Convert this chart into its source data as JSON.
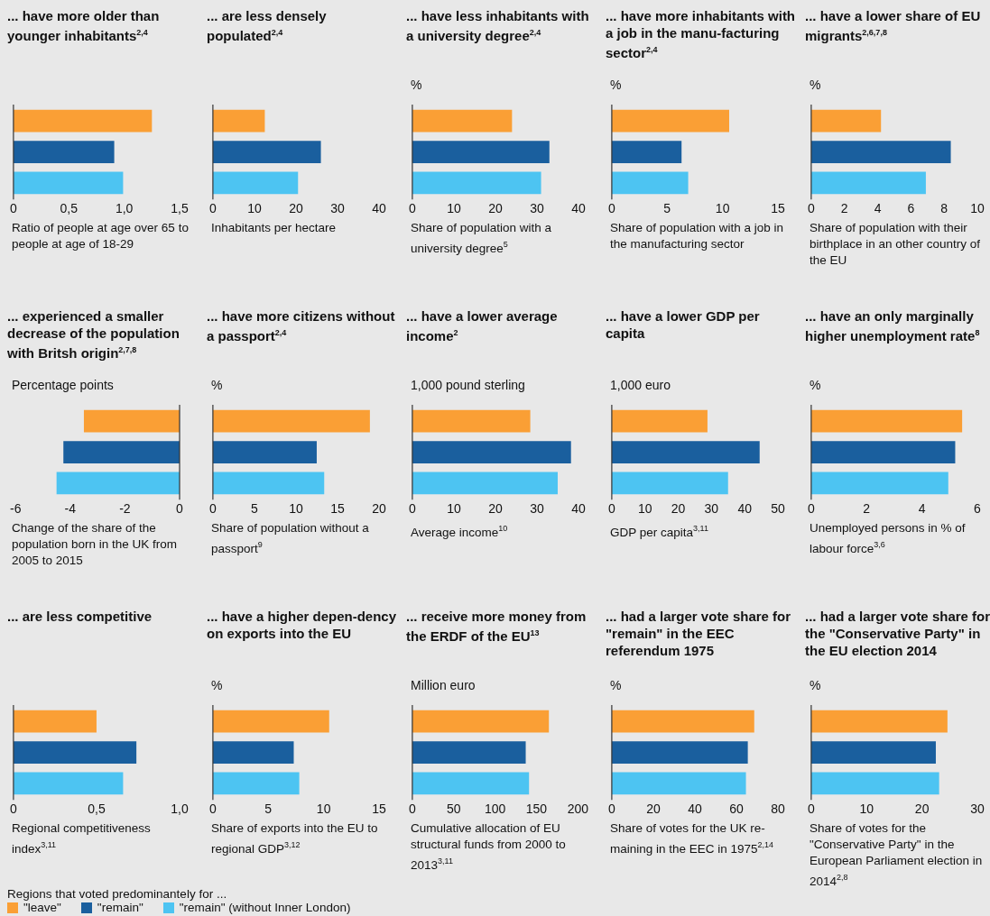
{
  "chart_data": [
    {
      "type": "bar",
      "orientation": "horizontal",
      "title": "... have more older than younger inhabitants$^{2,4}$",
      "xlabel": "Ratio of people at age over 65 to people at age of 18-29",
      "categories": [
        null
      ],
      "legend": "bottom",
      "legend_title": "Regions that voted predominantely for ...",
      "xlim": [
        0,
        1.5
      ],
      "xticks": [
        0,
        {
          "value": 0.5,
          "label": "0,5"
        },
        {
          "value": 1,
          "label": "1,0"
        },
        {
          "value": 1.5,
          "label": "1,5"
        }
      ],
      "series": [
        {
          "name": "\"leave\"",
          "color": "#fa9f35",
          "values": [
            1.25
          ]
        },
        {
          "name": "\"remain\"",
          "color": "#1a5f9e",
          "values": [
            0.91
          ]
        },
        {
          "name": "\"remain\" (without Inner London)",
          "color": "#4dc4f2",
          "values": [
            0.99
          ]
        }
      ]
    },
    {
      "type": "bar",
      "orientation": "horizontal",
      "title": "... are less densely populated$^{2,4}$",
      "xlabel": "Inhabitants per hectare",
      "categories": [
        null
      ],
      "xlim": [
        0,
        40
      ],
      "xticks": [
        0,
        10,
        20,
        30,
        40
      ],
      "series": [
        {
          "color": "#fa9f35",
          "values": [
            12.5
          ]
        },
        {
          "color": "#1a5f9e",
          "values": [
            26
          ]
        },
        {
          "color": "#4dc4f2",
          "values": [
            20.5
          ]
        }
      ]
    },
    {
      "type": "bar",
      "orientation": "horizontal",
      "title": "... have less inhabitants with a university degree$^{2,4}$",
      "subtitle": "%",
      "xlabel": "Share of population with a university degree$^{5}$",
      "categories": [
        null
      ],
      "xlim": [
        0,
        40
      ],
      "xticks": [
        0,
        10,
        20,
        30,
        40
      ],
      "series": [
        {
          "color": "#fa9f35",
          "values": [
            24
          ]
        },
        {
          "color": "#1a5f9e",
          "values": [
            33
          ]
        },
        {
          "color": "#4dc4f2",
          "values": [
            31
          ]
        }
      ]
    },
    {
      "type": "bar",
      "orientation": "horizontal",
      "title": "... have more inhabitants with a job in the manu-facturing sector$^{2,4}$",
      "subtitle": "%",
      "xlabel": "Share of population with a job in the manufacturing sector",
      "categories": [
        null
      ],
      "xlim": [
        0,
        15
      ],
      "xticks": [
        0,
        5,
        10,
        15
      ],
      "series": [
        {
          "color": "#fa9f35",
          "values": [
            10.6
          ]
        },
        {
          "color": "#1a5f9e",
          "values": [
            6.3
          ]
        },
        {
          "color": "#4dc4f2",
          "values": [
            6.9
          ]
        }
      ]
    },
    {
      "type": "bar",
      "orientation": "horizontal",
      "title": "... have a lower share of EU migrants$^{2,6,7,8}$",
      "subtitle": "%",
      "xlabel": "Share of population with their birthplace in an other country of the EU",
      "categories": [
        null
      ],
      "xlim": [
        0,
        10
      ],
      "xticks": [
        0,
        2,
        4,
        6,
        8,
        10
      ],
      "series": [
        {
          "color": "#fa9f35",
          "values": [
            4.2
          ]
        },
        {
          "color": "#1a5f9e",
          "values": [
            8.4
          ]
        },
        {
          "color": "#4dc4f2",
          "values": [
            6.9
          ]
        }
      ]
    },
    {
      "type": "bar",
      "orientation": "horizontal",
      "title": "... experienced a smaller decrease of the population with Britsh origin$^{2,7,8}$",
      "subtitle": "Percentage points",
      "xlabel": "Change of the share of the population born in the UK from 2005 to 2015",
      "categories": [
        null
      ],
      "xlim": [
        -6,
        0
      ],
      "xticks": [
        -6,
        -4,
        -2,
        0
      ],
      "series": [
        {
          "color": "#fa9f35",
          "values": [
            -3.5
          ]
        },
        {
          "color": "#1a5f9e",
          "values": [
            -4.25
          ]
        },
        {
          "color": "#4dc4f2",
          "values": [
            -4.5
          ]
        }
      ]
    },
    {
      "type": "bar",
      "orientation": "horizontal",
      "title": "... have more citizens without a passport$^{2,4}$",
      "subtitle": "%",
      "xlabel": "Share of population without a passport$^{9}$",
      "categories": [
        null
      ],
      "xlim": [
        0,
        20
      ],
      "xticks": [
        0,
        5,
        10,
        15,
        20
      ],
      "series": [
        {
          "color": "#fa9f35",
          "values": [
            18.9
          ]
        },
        {
          "color": "#1a5f9e",
          "values": [
            12.5
          ]
        },
        {
          "color": "#4dc4f2",
          "values": [
            13.4
          ]
        }
      ]
    },
    {
      "type": "bar",
      "orientation": "horizontal",
      "title": "... have a lower average income$^{2}$",
      "subtitle": "1,000 pound sterling",
      "xlabel": "Average income$^{10}$",
      "categories": [
        null
      ],
      "xlim": [
        0,
        40
      ],
      "xticks": [
        0,
        10,
        20,
        30,
        40
      ],
      "series": [
        {
          "color": "#fa9f35",
          "values": [
            28.4
          ]
        },
        {
          "color": "#1a5f9e",
          "values": [
            38.2
          ]
        },
        {
          "color": "#4dc4f2",
          "values": [
            35
          ]
        }
      ]
    },
    {
      "type": "bar",
      "orientation": "horizontal",
      "title": "... have a lower GDP per capita",
      "subtitle": "1,000 euro",
      "xlabel": "GDP per capita$^{3,11}$",
      "categories": [
        null
      ],
      "xlim": [
        0,
        50
      ],
      "xticks": [
        0,
        10,
        20,
        30,
        40,
        50
      ],
      "series": [
        {
          "color": "#fa9f35",
          "values": [
            28.8
          ]
        },
        {
          "color": "#1a5f9e",
          "values": [
            44.5
          ]
        },
        {
          "color": "#4dc4f2",
          "values": [
            35
          ]
        }
      ]
    },
    {
      "type": "bar",
      "orientation": "horizontal",
      "title": "... have an only marginally higher unemployment rate$^{8}$",
      "subtitle": "%",
      "xlabel": "Unemployed persons in % of labour force$^{3,6}$",
      "categories": [
        null
      ],
      "xlim": [
        0,
        6
      ],
      "xticks": [
        0,
        2,
        4,
        6
      ],
      "series": [
        {
          "color": "#fa9f35",
          "values": [
            5.45
          ]
        },
        {
          "color": "#1a5f9e",
          "values": [
            5.2
          ]
        },
        {
          "color": "#4dc4f2",
          "values": [
            4.95
          ]
        }
      ]
    },
    {
      "type": "bar",
      "orientation": "horizontal",
      "title": "... are less competitive",
      "xlabel": "Regional competitiveness index$^{3,11}$",
      "categories": [
        null
      ],
      "xlim": [
        0,
        1
      ],
      "xticks": [
        0,
        {
          "value": 0.5,
          "label": "0,5"
        },
        {
          "value": 1,
          "label": "1,0"
        }
      ],
      "series": [
        {
          "color": "#fa9f35",
          "values": [
            0.5
          ]
        },
        {
          "color": "#1a5f9e",
          "values": [
            0.74
          ]
        },
        {
          "color": "#4dc4f2",
          "values": [
            0.66
          ]
        }
      ]
    },
    {
      "type": "bar",
      "orientation": "horizontal",
      "title": "... have a higher depen-dency on exports into the EU",
      "subtitle": "%",
      "xlabel": "Share of exports into the EU to regional GDP$^{3,12}$",
      "categories": [
        null
      ],
      "xlim": [
        0,
        15
      ],
      "xticks": [
        0,
        5,
        10,
        15
      ],
      "series": [
        {
          "color": "#fa9f35",
          "values": [
            10.5
          ]
        },
        {
          "color": "#1a5f9e",
          "values": [
            7.3
          ]
        },
        {
          "color": "#4dc4f2",
          "values": [
            7.8
          ]
        }
      ]
    },
    {
      "type": "bar",
      "orientation": "horizontal",
      "title": "... receive more money from the ERDF of the EU$^{13}$",
      "subtitle": "Million euro",
      "xlabel": "Cumulative allocation of EU structural funds from 2000 to 2013$^{3,11}$",
      "categories": [
        null
      ],
      "xlim": [
        0,
        200
      ],
      "xticks": [
        0,
        50,
        100,
        150,
        200
      ],
      "series": [
        {
          "color": "#fa9f35",
          "values": [
            165
          ]
        },
        {
          "color": "#1a5f9e",
          "values": [
            137
          ]
        },
        {
          "color": "#4dc4f2",
          "values": [
            141
          ]
        }
      ]
    },
    {
      "type": "bar",
      "orientation": "horizontal",
      "title": "... had a larger vote share for \"remain\" in the EEC referendum 1975",
      "subtitle": "%",
      "xlabel": "Share of votes for the UK re-maining in the EEC in 1975$^{2,14}$",
      "categories": [
        null
      ],
      "xlim": [
        0,
        80
      ],
      "xticks": [
        0,
        20,
        40,
        60,
        80
      ],
      "series": [
        {
          "color": "#fa9f35",
          "values": [
            68.6
          ]
        },
        {
          "color": "#1a5f9e",
          "values": [
            65.5
          ]
        },
        {
          "color": "#4dc4f2",
          "values": [
            64.6
          ]
        }
      ]
    },
    {
      "type": "bar",
      "orientation": "horizontal",
      "title": "... had a larger vote share for the \"Conservative Party\" in the EU election 2014",
      "subtitle": "%",
      "xlabel": "Share of votes for the \"Conservative Party\" in the European Parliament election in 2014$^{2,8}$",
      "categories": [
        null
      ],
      "xlim": [
        0,
        30
      ],
      "xticks": [
        0,
        10,
        20,
        30
      ],
      "series": [
        {
          "color": "#fa9f35",
          "values": [
            24.6
          ]
        },
        {
          "color": "#1a5f9e",
          "values": [
            22.5
          ]
        },
        {
          "color": "#4dc4f2",
          "values": [
            23.1
          ]
        }
      ]
    }
  ]
}
